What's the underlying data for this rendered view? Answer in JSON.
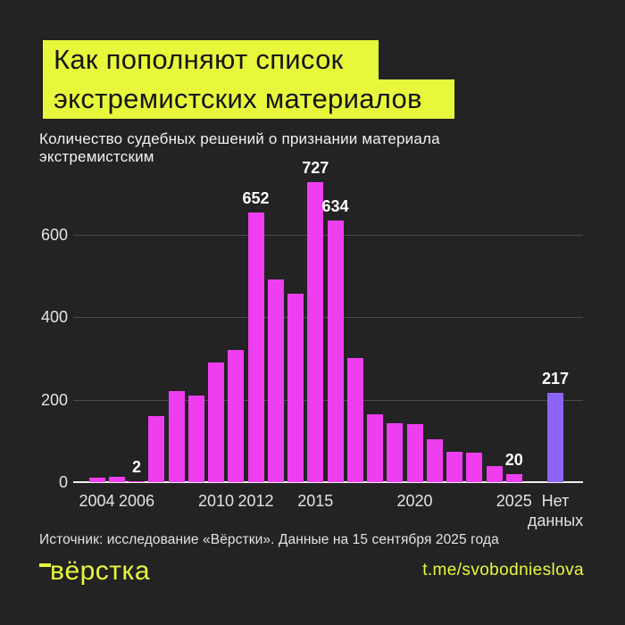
{
  "colors": {
    "background": "#232323",
    "accent_yellow": "#e7f83c",
    "bar_magenta": "#ee3ef0",
    "bar_purple": "#8d65f6",
    "gridline": "#4b4b4b",
    "baseline": "#efefef",
    "tick_text": "#e3e3e3",
    "title_text": "#161616"
  },
  "header": {
    "title_line1": "Как пополняют список",
    "title_line2": "экстремистских материалов"
  },
  "subtitle": "Количество судебных решений о признании материала экстремистским",
  "chart_data": {
    "type": "bar",
    "title": "Как пополняют список экстремистских материалов",
    "subtitle": "Количество судебных решений о признании материала экстремистским",
    "categories": [
      "2004",
      "2005",
      "2006",
      "2007",
      "2008",
      "2009",
      "2010",
      "2011",
      "2012",
      "2013",
      "2014",
      "2015",
      "2016",
      "2017",
      "2018",
      "2019",
      "2020",
      "2021",
      "2022",
      "2023",
      "2024",
      "2025",
      "Нет данных"
    ],
    "values": [
      10,
      12,
      2,
      160,
      220,
      210,
      290,
      321,
      652,
      490,
      457,
      727,
      634,
      301,
      164,
      143,
      141,
      103,
      73,
      71,
      38,
      20,
      217
    ],
    "labeled_points": [
      {
        "index": 2,
        "category": "2006",
        "value": 2
      },
      {
        "index": 8,
        "category": "2012",
        "value": 652
      },
      {
        "index": 11,
        "category": "2015",
        "value": 727
      },
      {
        "index": 12,
        "category": "2016",
        "value": 634
      },
      {
        "index": 21,
        "category": "2025",
        "value": 20
      },
      {
        "index": 22,
        "category": "Нет данных",
        "value": 217
      }
    ],
    "xticks": [
      {
        "index": 0,
        "label": "2004"
      },
      {
        "index": 2,
        "label": "2006"
      },
      {
        "index": 6,
        "label": "2010"
      },
      {
        "index": 8,
        "label": "2012"
      },
      {
        "index": 11,
        "label": "2015"
      },
      {
        "index": 16,
        "label": "2020"
      },
      {
        "index": 21,
        "label": "2025"
      },
      {
        "index": 22,
        "label": "Нет данных"
      }
    ],
    "yticks": [
      0,
      200,
      400,
      600
    ],
    "ylim": [
      0,
      760
    ],
    "grid": true,
    "legend": false,
    "xlabel": "",
    "ylabel": "",
    "series_colors": {
      "default": "#ee3ef0",
      "Нет данных": "#8d65f6"
    }
  },
  "footer": {
    "source": "Источник: исследование «Вёрстки». Данные на 15 сентября 2025 года",
    "logo": "вёрстка",
    "link": "t.me/svobodnieslova"
  }
}
